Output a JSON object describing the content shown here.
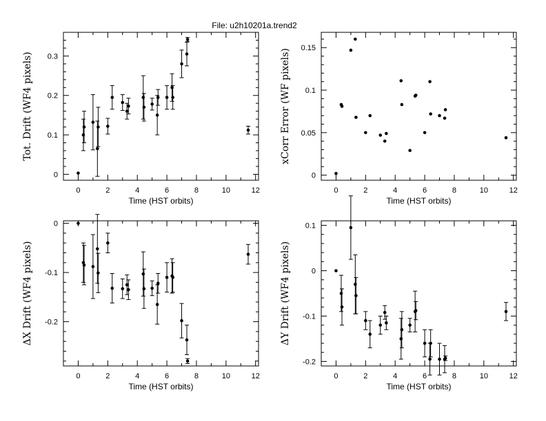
{
  "figure_title": "File: u2h10201a.trend2",
  "chart_data": [
    {
      "type": "scatter",
      "panel": "top-left",
      "xlabel": "Time (HST orbits)",
      "ylabel": "Tot. Drift  (WF4 pixels)",
      "xlim": [
        -1,
        12.2
      ],
      "ylim": [
        -0.015,
        0.36
      ],
      "xticks": [
        0,
        2,
        4,
        6,
        8,
        10,
        12
      ],
      "yticks": [
        0,
        0.1,
        0.2,
        0.3
      ],
      "ytick_labels": [
        "0",
        "0.1",
        "0.2",
        "0.3"
      ],
      "error_bars": true,
      "points": [
        {
          "x": 0.0,
          "y": 0.003,
          "err": 0
        },
        {
          "x": 0.35,
          "y": 0.1,
          "err": 0.04
        },
        {
          "x": 0.4,
          "y": 0.12,
          "err": 0.04
        },
        {
          "x": 1.0,
          "y": 0.132,
          "err": 0.07
        },
        {
          "x": 1.3,
          "y": 0.065,
          "err": 0.07
        },
        {
          "x": 1.35,
          "y": 0.12,
          "err": 0.05
        },
        {
          "x": 2.0,
          "y": 0.122,
          "err": 0.02
        },
        {
          "x": 2.3,
          "y": 0.195,
          "err": 0.03
        },
        {
          "x": 3.0,
          "y": 0.182,
          "err": 0.02
        },
        {
          "x": 3.3,
          "y": 0.16,
          "err": 0.02
        },
        {
          "x": 3.4,
          "y": 0.173,
          "err": 0.02
        },
        {
          "x": 4.4,
          "y": 0.195,
          "err": 0.055
        },
        {
          "x": 4.45,
          "y": 0.17,
          "err": 0.035
        },
        {
          "x": 5.0,
          "y": 0.178,
          "err": 0.015
        },
        {
          "x": 5.35,
          "y": 0.15,
          "err": 0.05
        },
        {
          "x": 5.4,
          "y": 0.195,
          "err": 0.02
        },
        {
          "x": 6.0,
          "y": 0.195,
          "err": 0.03
        },
        {
          "x": 6.35,
          "y": 0.22,
          "err": 0.035
        },
        {
          "x": 6.4,
          "y": 0.195,
          "err": 0.03
        },
        {
          "x": 7.0,
          "y": 0.28,
          "err": 0.035
        },
        {
          "x": 7.35,
          "y": 0.305,
          "err": 0.03
        },
        {
          "x": 7.4,
          "y": 0.342,
          "err": 0.005
        },
        {
          "x": 11.5,
          "y": 0.112,
          "err": 0.01
        }
      ]
    },
    {
      "type": "scatter",
      "panel": "top-right",
      "xlabel": "Time (HST orbits)",
      "ylabel": "xCorr  Error  (WF  pixels)",
      "xlim": [
        -1,
        12.2
      ],
      "ylim": [
        -0.006,
        0.168
      ],
      "xticks": [
        0,
        2,
        4,
        6,
        8,
        10,
        12
      ],
      "yticks": [
        0,
        0.05,
        0.1,
        0.15
      ],
      "ytick_labels": [
        "0",
        "0.05",
        "0.1",
        "0.15"
      ],
      "error_bars": false,
      "points": [
        {
          "x": 0.0,
          "y": 0.002
        },
        {
          "x": 0.35,
          "y": 0.083
        },
        {
          "x": 0.4,
          "y": 0.081
        },
        {
          "x": 1.0,
          "y": 0.147
        },
        {
          "x": 1.3,
          "y": 0.16
        },
        {
          "x": 1.35,
          "y": 0.068
        },
        {
          "x": 2.0,
          "y": 0.05
        },
        {
          "x": 2.3,
          "y": 0.07
        },
        {
          "x": 3.0,
          "y": 0.047
        },
        {
          "x": 3.3,
          "y": 0.04
        },
        {
          "x": 3.4,
          "y": 0.049
        },
        {
          "x": 4.4,
          "y": 0.111
        },
        {
          "x": 4.45,
          "y": 0.083
        },
        {
          "x": 5.0,
          "y": 0.029
        },
        {
          "x": 5.35,
          "y": 0.093
        },
        {
          "x": 5.4,
          "y": 0.094
        },
        {
          "x": 6.0,
          "y": 0.05
        },
        {
          "x": 6.35,
          "y": 0.11
        },
        {
          "x": 6.4,
          "y": 0.072
        },
        {
          "x": 7.0,
          "y": 0.07
        },
        {
          "x": 7.35,
          "y": 0.067
        },
        {
          "x": 7.4,
          "y": 0.077
        },
        {
          "x": 11.5,
          "y": 0.044
        }
      ]
    },
    {
      "type": "scatter",
      "panel": "bottom-left",
      "xlabel": "Time (HST orbits)",
      "ylabel": "ΔX  Drift  (WF4  pixels)",
      "xlim": [
        -1,
        12.2
      ],
      "ylim": [
        -0.29,
        0.005
      ],
      "xticks": [
        0,
        2,
        4,
        6,
        8,
        10,
        12
      ],
      "yticks": [
        0,
        -0.1,
        -0.2
      ],
      "ytick_labels": [
        "0",
        "-0.1",
        "-0.2"
      ],
      "error_bars": true,
      "points": [
        {
          "x": 0.0,
          "y": 0.0,
          "err": 0
        },
        {
          "x": 0.35,
          "y": -0.08,
          "err": 0.04
        },
        {
          "x": 0.4,
          "y": -0.085,
          "err": 0.04
        },
        {
          "x": 1.0,
          "y": -0.088,
          "err": 0.065
        },
        {
          "x": 1.3,
          "y": -0.052,
          "err": 0.07
        },
        {
          "x": 1.35,
          "y": -0.101,
          "err": 0.04
        },
        {
          "x": 2.0,
          "y": -0.04,
          "err": 0.02
        },
        {
          "x": 2.3,
          "y": -0.132,
          "err": 0.03
        },
        {
          "x": 3.0,
          "y": -0.133,
          "err": 0.02
        },
        {
          "x": 3.3,
          "y": -0.125,
          "err": 0.02
        },
        {
          "x": 3.4,
          "y": -0.135,
          "err": 0.02
        },
        {
          "x": 4.4,
          "y": -0.103,
          "err": 0.045
        },
        {
          "x": 4.45,
          "y": -0.133,
          "err": 0.04
        },
        {
          "x": 5.0,
          "y": -0.132,
          "err": 0.015
        },
        {
          "x": 5.35,
          "y": -0.165,
          "err": 0.04
        },
        {
          "x": 5.4,
          "y": -0.122,
          "err": 0.02
        },
        {
          "x": 6.0,
          "y": -0.11,
          "err": 0.03
        },
        {
          "x": 6.35,
          "y": -0.107,
          "err": 0.035
        },
        {
          "x": 6.4,
          "y": -0.11,
          "err": 0.03
        },
        {
          "x": 7.0,
          "y": -0.198,
          "err": 0.035
        },
        {
          "x": 7.35,
          "y": -0.237,
          "err": 0.03
        },
        {
          "x": 7.4,
          "y": -0.28,
          "err": 0.005
        },
        {
          "x": 11.5,
          "y": -0.063,
          "err": 0.02
        }
      ]
    },
    {
      "type": "scatter",
      "panel": "bottom-right",
      "xlabel": "Time (HST orbits)",
      "ylabel": "ΔY  Drift  (WF4  pixels)",
      "xlim": [
        -1,
        12.2
      ],
      "ylim": [
        -0.21,
        0.11
      ],
      "xticks": [
        0,
        2,
        4,
        6,
        8,
        10,
        12
      ],
      "yticks": [
        0.1,
        0,
        -0.1,
        -0.2
      ],
      "ytick_labels": [
        "0.1",
        "0",
        "-0.1",
        "-0.2"
      ],
      "error_bars": true,
      "points": [
        {
          "x": 0.0,
          "y": 0.0,
          "err": 0
        },
        {
          "x": 0.35,
          "y": -0.05,
          "err": 0.04
        },
        {
          "x": 0.4,
          "y": -0.08,
          "err": 0.04
        },
        {
          "x": 1.0,
          "y": 0.095,
          "err": 0.07
        },
        {
          "x": 1.3,
          "y": -0.03,
          "err": 0.065
        },
        {
          "x": 1.35,
          "y": -0.055,
          "err": 0.04
        },
        {
          "x": 2.0,
          "y": -0.11,
          "err": 0.02
        },
        {
          "x": 2.3,
          "y": -0.14,
          "err": 0.03
        },
        {
          "x": 3.0,
          "y": -0.12,
          "err": 0.02
        },
        {
          "x": 3.3,
          "y": -0.092,
          "err": 0.015
        },
        {
          "x": 3.4,
          "y": -0.115,
          "err": 0.015
        },
        {
          "x": 4.4,
          "y": -0.15,
          "err": 0.045
        },
        {
          "x": 4.45,
          "y": -0.13,
          "err": 0.04
        },
        {
          "x": 5.0,
          "y": -0.12,
          "err": 0.015
        },
        {
          "x": 5.35,
          "y": -0.09,
          "err": 0.045
        },
        {
          "x": 5.4,
          "y": -0.088,
          "err": 0.02
        },
        {
          "x": 6.0,
          "y": -0.16,
          "err": 0.03
        },
        {
          "x": 6.35,
          "y": -0.195,
          "err": 0.035
        },
        {
          "x": 6.4,
          "y": -0.16,
          "err": 0.03
        },
        {
          "x": 7.0,
          "y": -0.195,
          "err": 0.035
        },
        {
          "x": 7.35,
          "y": -0.195,
          "err": 0.03
        },
        {
          "x": 7.4,
          "y": -0.193,
          "err": 0.005
        },
        {
          "x": 11.5,
          "y": -0.09,
          "err": 0.02
        }
      ]
    }
  ]
}
